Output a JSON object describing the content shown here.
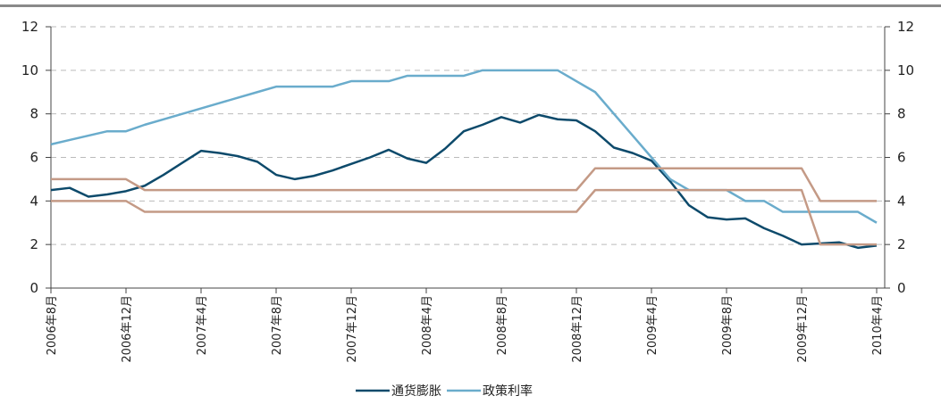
{
  "chart_data": {
    "type": "line",
    "categories": [
      "2006年8月",
      null,
      null,
      null,
      "2006年12月",
      null,
      null,
      null,
      "2007年4月",
      null,
      null,
      null,
      "2007年8月",
      null,
      null,
      null,
      "2007年12月",
      null,
      null,
      null,
      "2008年4月",
      null,
      null,
      null,
      "2008年8月",
      null,
      null,
      null,
      "2008年12月",
      null,
      null,
      null,
      "2009年4月",
      null,
      null,
      null,
      "2009年8月",
      null,
      null,
      null,
      "2009年12月",
      null,
      null,
      null,
      "2010年4月"
    ],
    "series": [
      {
        "name": "通货膨胀",
        "color": "#0d4a6b",
        "values": [
          4.5,
          4.6,
          4.2,
          4.3,
          4.45,
          4.7,
          5.2,
          5.75,
          6.3,
          6.2,
          6.05,
          5.8,
          5.2,
          5.0,
          5.15,
          5.4,
          5.7,
          6.0,
          6.35,
          5.95,
          5.75,
          6.4,
          7.2,
          7.5,
          7.85,
          7.6,
          7.95,
          7.75,
          7.7,
          7.2,
          6.45,
          6.2,
          5.85,
          4.9,
          3.8,
          3.25,
          3.15,
          3.2,
          2.75,
          2.4,
          2.0,
          2.05,
          2.1,
          1.85,
          1.95
        ]
      },
      {
        "name": "政策利率",
        "color": "#6aaccc",
        "values": [
          6.6,
          6.8,
          7.0,
          7.2,
          7.2,
          7.5,
          7.75,
          8.0,
          8.25,
          8.5,
          8.75,
          9.0,
          9.25,
          9.25,
          9.25,
          9.25,
          9.5,
          9.5,
          9.5,
          9.75,
          9.75,
          9.75,
          9.75,
          10,
          10,
          10,
          10,
          10,
          9.5,
          9.0,
          8.0,
          7.0,
          6.0,
          5.0,
          4.5,
          4.5,
          4.5,
          4.0,
          4.0,
          3.5,
          3.5,
          3.5,
          3.5,
          3.5,
          3.0
        ]
      },
      {
        "color": "#c49a86",
        "values": [
          5.0,
          5.0,
          5.0,
          5.0,
          5.0,
          4.5,
          4.5,
          4.5,
          4.5,
          4.5,
          4.5,
          4.5,
          4.5,
          4.5,
          4.5,
          4.5,
          4.5,
          4.5,
          4.5,
          4.5,
          4.5,
          4.5,
          4.5,
          4.5,
          4.5,
          4.5,
          4.5,
          4.5,
          4.5,
          5.5,
          5.5,
          5.5,
          5.5,
          5.5,
          5.5,
          5.5,
          5.5,
          5.5,
          5.5,
          5.5,
          5.5,
          4.0,
          4.0,
          4.0,
          4.0
        ]
      },
      {
        "color": "#c49a86",
        "values": [
          4.0,
          4.0,
          4.0,
          4.0,
          4.0,
          3.5,
          3.5,
          3.5,
          3.5,
          3.5,
          3.5,
          3.5,
          3.5,
          3.5,
          3.5,
          3.5,
          3.5,
          3.5,
          3.5,
          3.5,
          3.5,
          3.5,
          3.5,
          3.5,
          3.5,
          3.5,
          3.5,
          3.5,
          3.5,
          4.5,
          4.5,
          4.5,
          4.5,
          4.5,
          4.5,
          4.5,
          4.5,
          4.5,
          4.5,
          4.5,
          4.5,
          2.0,
          2.0,
          2.0,
          2.0
        ]
      }
    ],
    "ylim": [
      0,
      12
    ],
    "yticks": [
      0,
      2,
      4,
      6,
      8,
      10,
      12
    ],
    "y2lim": [
      0,
      12
    ],
    "y2ticks": [
      0,
      2,
      4,
      6,
      8,
      10,
      12
    ],
    "grid": true,
    "legend": "bottom"
  }
}
